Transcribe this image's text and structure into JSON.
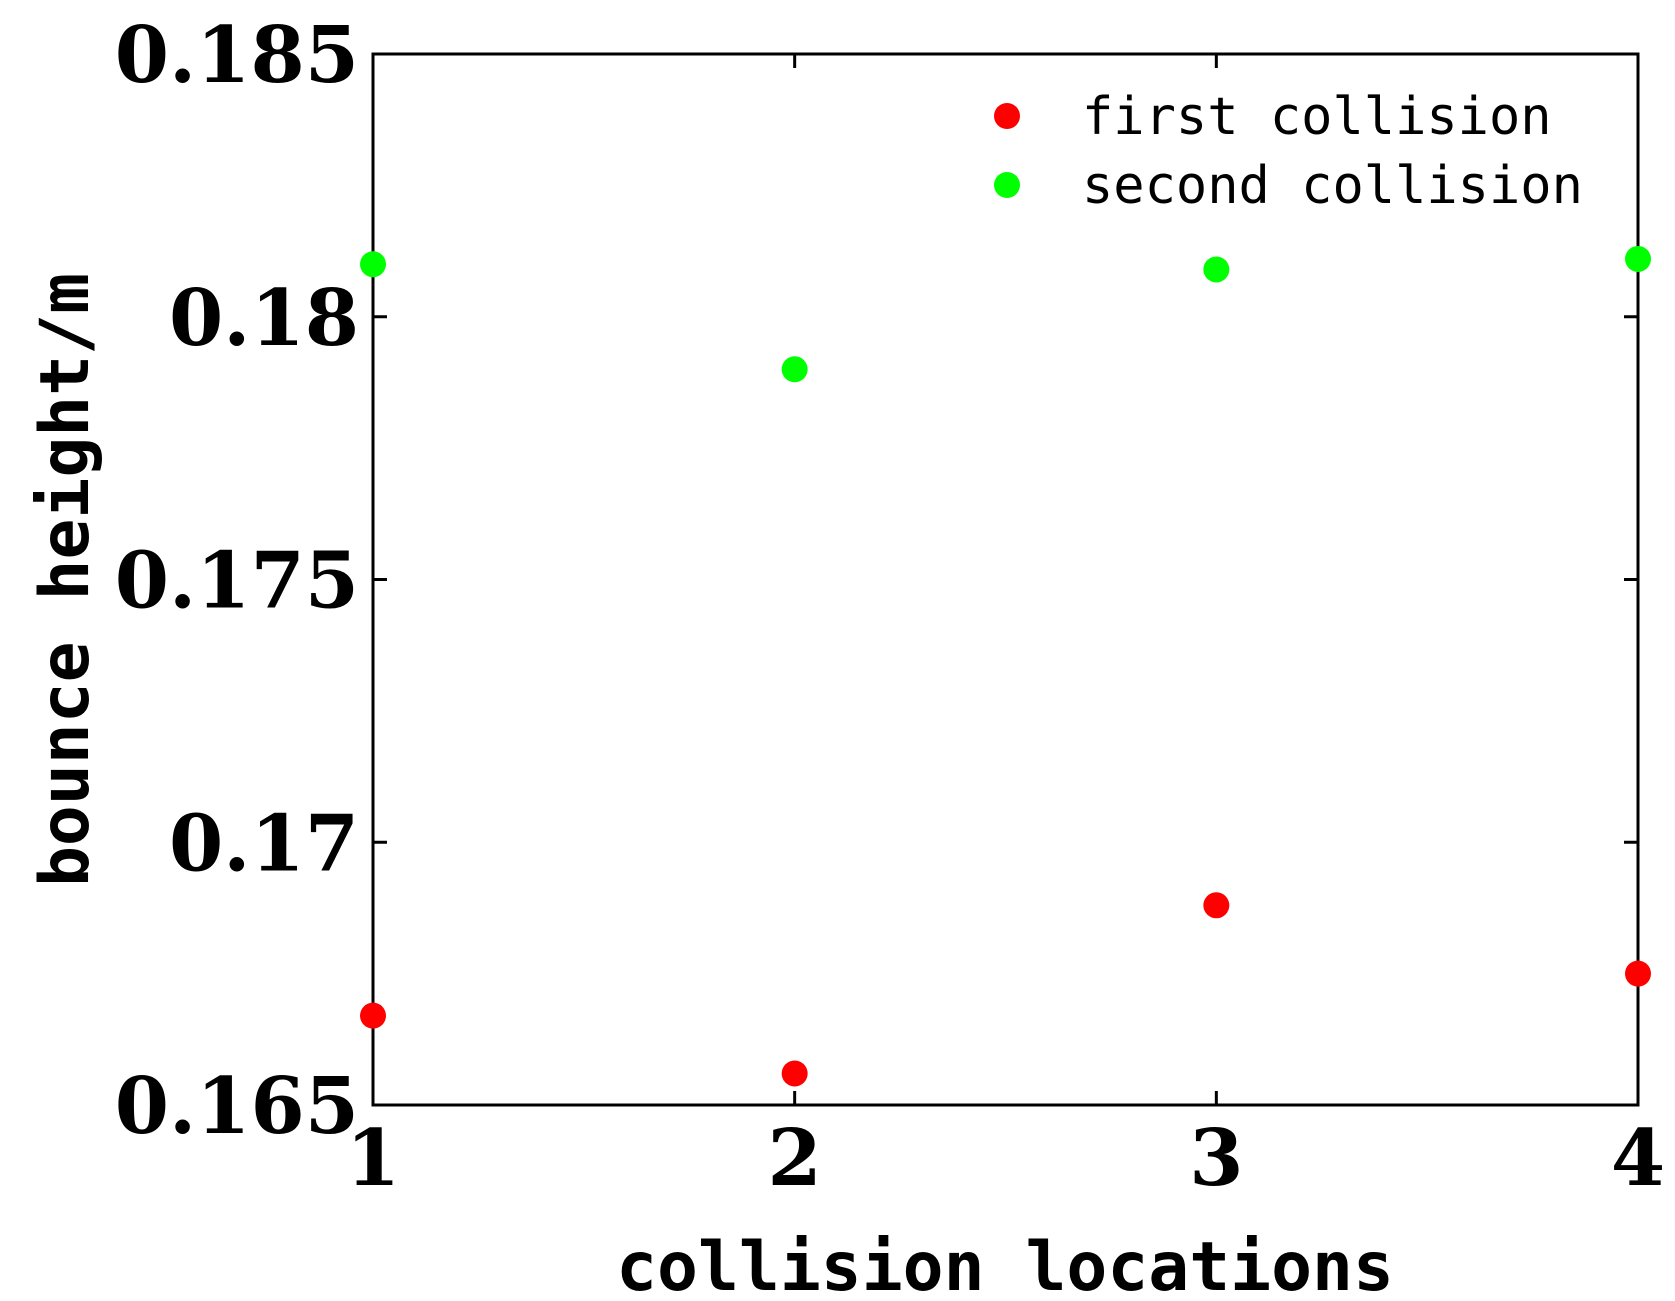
{
  "chart_data": {
    "type": "scatter",
    "xlabel": "collision locations",
    "ylabel": "bounce height/m",
    "xlim": [
      1,
      4
    ],
    "ylim": [
      0.165,
      0.185
    ],
    "x_ticks": [
      1,
      2,
      3,
      4
    ],
    "x_tick_labels": [
      "1",
      "2",
      "3",
      "4"
    ],
    "y_ticks": [
      0.165,
      0.17,
      0.175,
      0.18,
      0.185
    ],
    "y_tick_labels": [
      "0.165",
      "0.17",
      "0.175",
      "0.18",
      "0.185"
    ],
    "grid": false,
    "legend_position": "top-right",
    "series": [
      {
        "name": "first collision",
        "color": "#ff0000",
        "x": [
          1,
          2,
          3,
          4
        ],
        "y": [
          0.1667,
          0.1656,
          0.1688,
          0.1675
        ]
      },
      {
        "name": "second collision",
        "color": "#00ff00",
        "x": [
          1,
          2,
          3,
          4
        ],
        "y": [
          0.181,
          0.179,
          0.1809,
          0.1811
        ]
      }
    ]
  }
}
